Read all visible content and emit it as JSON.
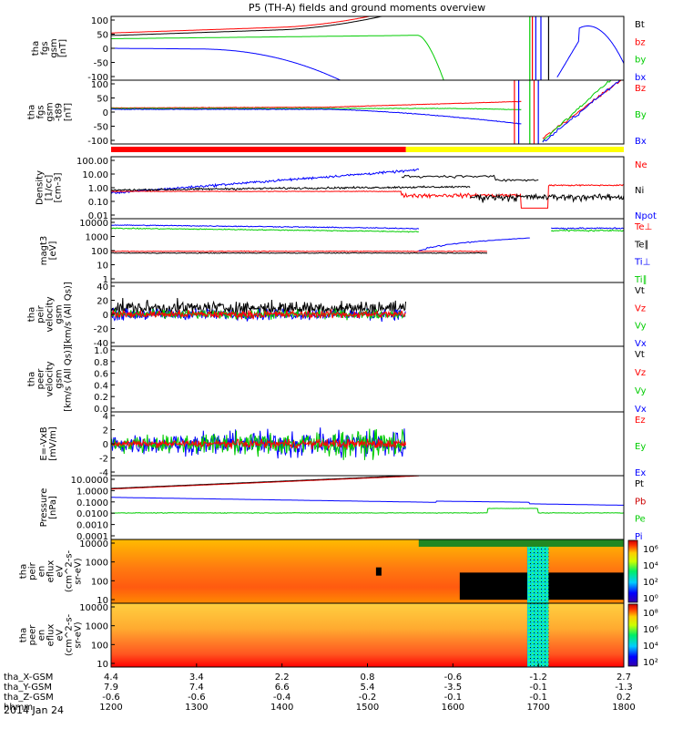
{
  "title": "P5 (TH-A) fields and ground moments overview",
  "date_label": "2014 Jan 24",
  "chart_data": [
    {
      "id": "fgs",
      "type": "line",
      "ylabel": [
        "tha",
        "fgs",
        "gsm",
        "[nT]"
      ],
      "yticks": [
        "100",
        "50",
        "0",
        "-50",
        "-100"
      ],
      "ylim": [
        -100,
        100
      ],
      "legend": [
        {
          "name": "Bt",
          "color": "#000000"
        },
        {
          "name": "bz",
          "color": "#ff0000"
        },
        {
          "name": "by",
          "color": "#00cc00"
        },
        {
          "name": "bx",
          "color": "#0000ff"
        }
      ]
    },
    {
      "id": "fgs_t89",
      "type": "line",
      "ylabel": [
        "tha",
        "fgs",
        "gsm",
        "-t89",
        "[nT]"
      ],
      "yticks": [
        "100",
        "50",
        "0",
        "-50",
        "-100"
      ],
      "ylim": [
        -130,
        100
      ],
      "legend": [
        {
          "name": "Bz",
          "color": "#ff0000"
        },
        {
          "name": "By",
          "color": "#00cc00"
        },
        {
          "name": "Bx",
          "color": "#0000ff"
        }
      ]
    },
    {
      "id": "density",
      "type": "line",
      "ylabel": [
        "Density",
        "[1/cc]",
        "[cm-3]"
      ],
      "yticks": [
        "100.00",
        "10.00",
        "1.00",
        "0.10",
        "0.01"
      ],
      "ylim": [
        0.003,
        200
      ],
      "legend": [
        {
          "name": "Ne",
          "color": "#ff0000"
        },
        {
          "name": "Ni",
          "color": "#000000"
        },
        {
          "name": "Npot",
          "color": "#0000ff"
        }
      ]
    },
    {
      "id": "temperature",
      "type": "line",
      "ylabel": [
        "magt3",
        "[eV]"
      ],
      "yticks": [
        "10000",
        "1000",
        "100",
        "10",
        "1"
      ],
      "ylim": [
        1,
        10000
      ],
      "legend": [
        {
          "name": "Te⊥",
          "color": "#ff0000"
        },
        {
          "name": "Te∥",
          "color": "#000000"
        },
        {
          "name": "Ti⊥",
          "color": "#0000ff"
        },
        {
          "name": "Ti∥",
          "color": "#00cc00"
        }
      ]
    },
    {
      "id": "peir_velocity",
      "type": "line",
      "ylabel": [
        "tha",
        "peir",
        "velocity",
        "gsm",
        "[km/s (All Qs)]"
      ],
      "yticks": [
        "40",
        "20",
        "0",
        "-20",
        "-40"
      ],
      "ylim": [
        -40,
        40
      ],
      "legend": [
        {
          "name": "Vt",
          "color": "#000000"
        },
        {
          "name": "Vz",
          "color": "#ff0000"
        },
        {
          "name": "Vy",
          "color": "#00cc00"
        },
        {
          "name": "Vx",
          "color": "#0000ff"
        }
      ]
    },
    {
      "id": "peer_velocity",
      "type": "line",
      "ylabel": [
        "tha",
        "peer",
        "velocity",
        "gsm",
        "[km/s (All Qs)]"
      ],
      "yticks": [
        "1.0",
        "0.8",
        "0.6",
        "0.4",
        "0.2",
        "0.0"
      ],
      "ylim": [
        0,
        1
      ],
      "legend": [
        {
          "name": "Vt",
          "color": "#000000"
        },
        {
          "name": "Vz",
          "color": "#ff0000"
        },
        {
          "name": "Vy",
          "color": "#00cc00"
        },
        {
          "name": "Vx",
          "color": "#0000ff"
        }
      ]
    },
    {
      "id": "efield",
      "type": "line",
      "ylabel": [
        "E=-VxB",
        "[mV/m]"
      ],
      "yticks": [
        "4",
        "2",
        "0",
        "-2",
        "-4"
      ],
      "ylim": [
        -4,
        4
      ],
      "legend": [
        {
          "name": "Ez",
          "color": "#ff0000"
        },
        {
          "name": "Ey",
          "color": "#00cc00"
        },
        {
          "name": "Ex",
          "color": "#0000ff"
        }
      ]
    },
    {
      "id": "pressure",
      "type": "line",
      "ylabel": [
        "Pressure",
        "[nPa]"
      ],
      "yticks": [
        "10.0000",
        "1.0000",
        "0.1000",
        "0.0100",
        "0.0010",
        "0.0001"
      ],
      "ylim": [
        0.0001,
        10
      ],
      "legend": [
        {
          "name": "Pt",
          "color": "#000000"
        },
        {
          "name": "Pb",
          "color": "#cc0000"
        },
        {
          "name": "Pe",
          "color": "#00cc00"
        },
        {
          "name": "Pi",
          "color": "#0000ff"
        }
      ]
    },
    {
      "id": "peir_spec",
      "type": "heatmap",
      "ylabel": [
        "tha",
        "peir",
        "en",
        "eflux",
        "eV",
        "(cm^2-s-",
        "sr-eV)"
      ],
      "yticks": [
        "10000",
        "1000",
        "100",
        "10"
      ],
      "ylim": [
        5,
        25000
      ],
      "colorbar_ticks": [
        "10⁶",
        "10⁴",
        "10²",
        "10⁰"
      ],
      "colorbar_range": [
        1,
        10000000
      ]
    },
    {
      "id": "peer_spec",
      "type": "heatmap",
      "ylabel": [
        "tha",
        "peer",
        "en",
        "eflux",
        "eV",
        "(cm^2-s-",
        "sr-eV)"
      ],
      "yticks": [
        "10000",
        "1000",
        "100",
        "10"
      ],
      "ylim": [
        5,
        25000
      ],
      "colorbar_ticks": [
        "10⁸",
        "10⁶",
        "10⁴",
        "10²"
      ],
      "colorbar_range": [
        50,
        300000000
      ]
    }
  ],
  "mode_bar": [
    {
      "t0": 1200,
      "t1": 1545,
      "color": "#ff0000"
    },
    {
      "t0": 1545,
      "t1": 1800,
      "color": "#ffff00"
    }
  ],
  "xaxis": {
    "t0": 1200,
    "t1": 1800,
    "tick_times": [
      1200,
      1300,
      1400,
      1500,
      1600,
      1700,
      1800
    ],
    "rows": [
      {
        "label": "tha_X-GSM",
        "values": [
          "4.4",
          "3.4",
          "2.2",
          "0.8",
          "-0.6",
          "-1.2",
          "2.7"
        ]
      },
      {
        "label": "tha_Y-GSM",
        "values": [
          "7.9",
          "7.4",
          "6.6",
          "5.4",
          "-3.5",
          "-0.1",
          "-1.3"
        ]
      },
      {
        "label": "tha_Z-GSM",
        "values": [
          "-0.6",
          "-0.6",
          "-0.4",
          "-0.2",
          "-0.1",
          "-0.1",
          "0.2"
        ]
      },
      {
        "label": "hhmm",
        "values": [
          "1200",
          "1300",
          "1400",
          "1500",
          "1600",
          "1700",
          "1800"
        ]
      }
    ]
  }
}
